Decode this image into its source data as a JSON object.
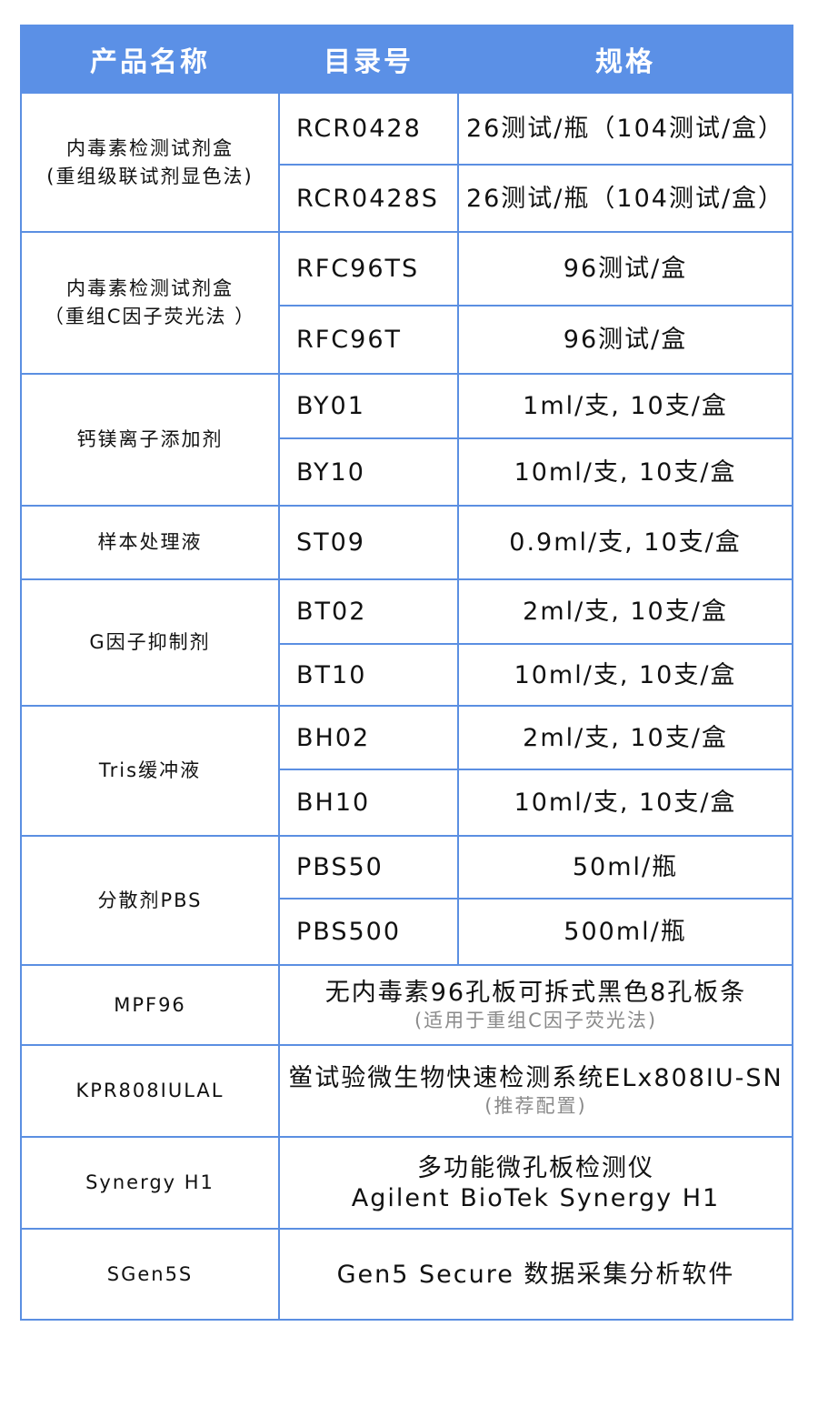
{
  "header": {
    "name": "产品名称",
    "catalog": "目录号",
    "spec": "规格"
  },
  "colors": {
    "header_bg": "#5b90e6",
    "border": "#5b8fe2"
  },
  "groups": [
    {
      "name": "内毒素检测试剂盒\n(重组级联试剂显色法)",
      "items": [
        {
          "catalog": "RCR0428",
          "spec": "26测试/瓶（104测试/盒）"
        },
        {
          "catalog": "RCR0428S",
          "spec": "26测试/瓶（104测试/盒）"
        }
      ]
    },
    {
      "name": "内毒素检测试剂盒\n（重组C因子荧光法 ）",
      "items": [
        {
          "catalog": "RFC96TS",
          "spec": "96测试/盒"
        },
        {
          "catalog": "RFC96T",
          "spec": "96测试/盒"
        }
      ]
    },
    {
      "name": "钙镁离子添加剂",
      "items": [
        {
          "catalog": "BY01",
          "spec": "1ml/支, 10支/盒"
        },
        {
          "catalog": "BY10",
          "spec": "10ml/支, 10支/盒"
        }
      ]
    },
    {
      "name": "样本处理液",
      "items": [
        {
          "catalog": "ST09",
          "spec": "0.9ml/支, 10支/盒"
        }
      ]
    },
    {
      "name": "G因子抑制剂",
      "items": [
        {
          "catalog": "BT02",
          "spec": "2ml/支, 10支/盒"
        },
        {
          "catalog": "BT10",
          "spec": "10ml/支, 10支/盒"
        }
      ]
    },
    {
      "name": "Tris缓冲液",
      "items": [
        {
          "catalog": "BH02",
          "spec": "2ml/支, 10支/盒"
        },
        {
          "catalog": "BH10",
          "spec": "10ml/支, 10支/盒"
        }
      ]
    },
    {
      "name": "分散剂PBS",
      "items": [
        {
          "catalog": "PBS50",
          "spec": "50ml/瓶"
        },
        {
          "catalog": "PBS500",
          "spec": "500ml/瓶"
        }
      ]
    }
  ],
  "wide_rows": [
    {
      "catalog": "MPF96",
      "spec": "无内毒素96孔板可拆式黑色8孔板条",
      "note": "(适用于重组C因子荧光法)"
    },
    {
      "catalog": "KPR808IULAL",
      "spec": "鲎试验微生物快速检测系统ELx808IU-SN",
      "note": "(推荐配置)"
    },
    {
      "catalog": "Synergy H1",
      "spec": "多功能微孔板检测仪\nAgilent BioTek Synergy H1",
      "note": ""
    },
    {
      "catalog": "SGen5S",
      "spec": "Gen5 Secure 数据采集分析软件",
      "note": ""
    }
  ]
}
